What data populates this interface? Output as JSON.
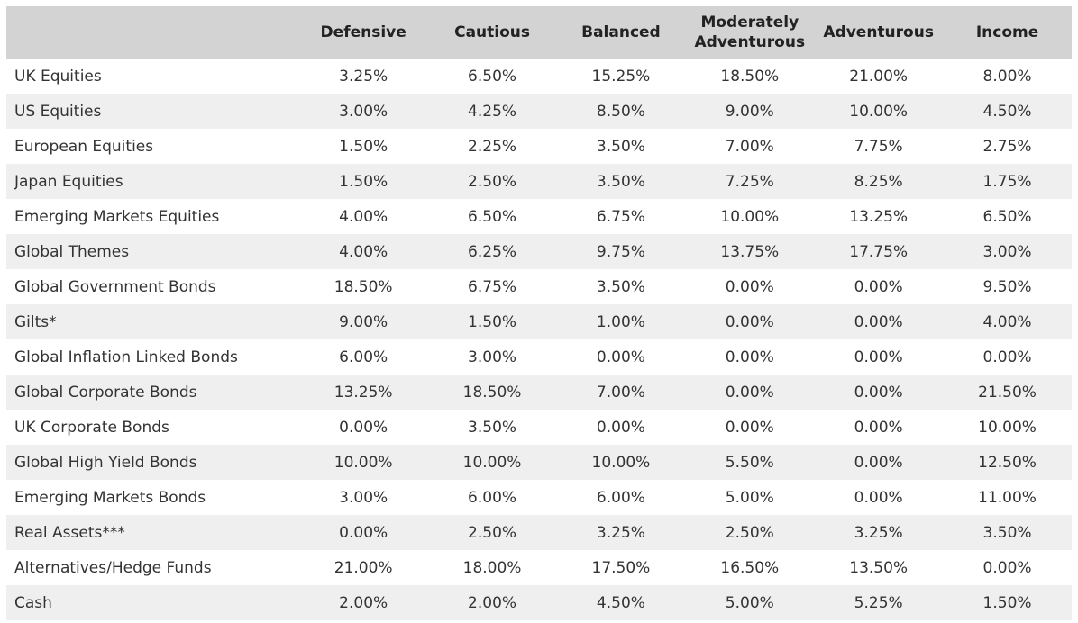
{
  "table": {
    "headers": [
      "Defensive",
      "Cautious",
      "Balanced",
      "Moderately Adventurous",
      "Adventurous",
      "Income"
    ],
    "rows": [
      [
        "UK Equities",
        "3.25%",
        "6.50%",
        "15.25%",
        "18.50%",
        "21.00%",
        "8.00%"
      ],
      [
        "US Equities",
        "3.00%",
        "4.25%",
        "8.50%",
        "9.00%",
        "10.00%",
        "4.50%"
      ],
      [
        "European Equities",
        "1.50%",
        "2.25%",
        "3.50%",
        "7.00%",
        "7.75%",
        "2.75%"
      ],
      [
        "Japan Equities",
        "1.50%",
        "2.50%",
        "3.50%",
        "7.25%",
        "8.25%",
        "1.75%"
      ],
      [
        "Emerging Markets Equities",
        "4.00%",
        "6.50%",
        "6.75%",
        "10.00%",
        "13.25%",
        "6.50%"
      ],
      [
        "Global Themes",
        "4.00%",
        "6.25%",
        "9.75%",
        "13.75%",
        "17.75%",
        "3.00%"
      ],
      [
        "Global Government Bonds",
        "18.50%",
        "6.75%",
        "3.50%",
        "0.00%",
        "0.00%",
        "9.50%"
      ],
      [
        "Gilts*",
        "9.00%",
        "1.50%",
        "1.00%",
        "0.00%",
        "0.00%",
        "4.00%"
      ],
      [
        "Global Inflation Linked Bonds",
        "6.00%",
        "3.00%",
        "0.00%",
        "0.00%",
        "0.00%",
        "0.00%"
      ],
      [
        "Global Corporate Bonds",
        "13.25%",
        "18.50%",
        "7.00%",
        "0.00%",
        "0.00%",
        "21.50%"
      ],
      [
        "UK Corporate Bonds",
        "0.00%",
        "3.50%",
        "0.00%",
        "0.00%",
        "0.00%",
        "10.00%"
      ],
      [
        "Global High Yield Bonds",
        "10.00%",
        "10.00%",
        "10.00%",
        "5.50%",
        "0.00%",
        "12.50%"
      ],
      [
        "Emerging Markets Bonds",
        "3.00%",
        "6.00%",
        "6.00%",
        "5.00%",
        "0.00%",
        "11.00%"
      ],
      [
        "Real Assets***",
        "0.00%",
        "2.50%",
        "3.25%",
        "2.50%",
        "3.25%",
        "3.50%"
      ],
      [
        "Alternatives/Hedge Funds",
        "21.00%",
        "18.00%",
        "17.50%",
        "16.50%",
        "13.50%",
        "0.00%"
      ],
      [
        "Cash",
        "2.00%",
        "2.00%",
        "4.50%",
        "5.00%",
        "5.25%",
        "1.50%"
      ]
    ]
  }
}
